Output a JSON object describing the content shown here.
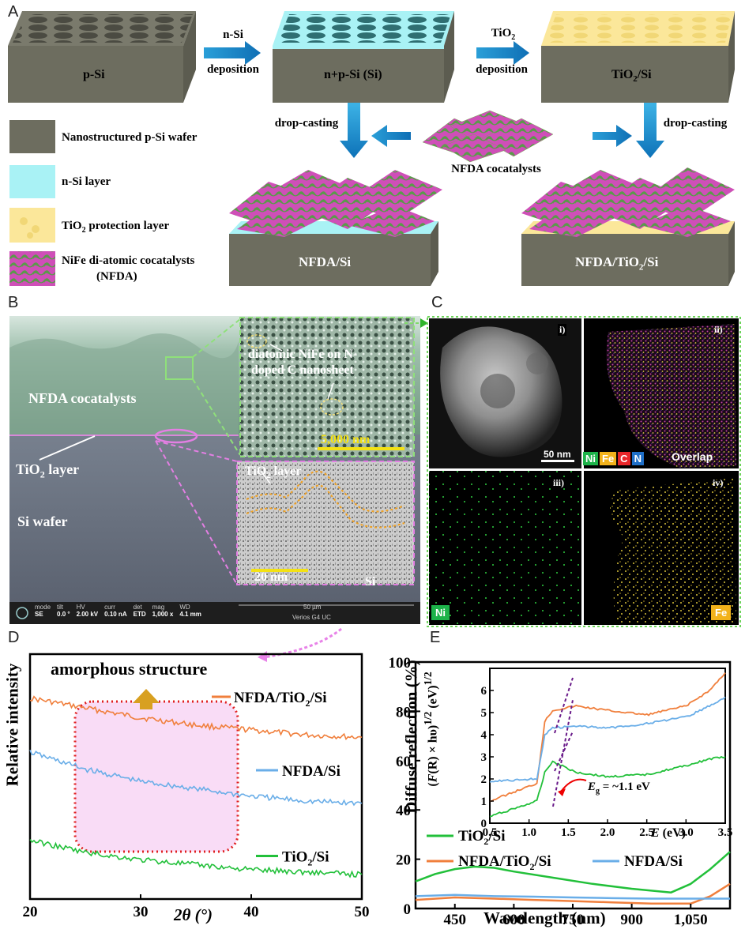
{
  "panelA": {
    "label": "A",
    "blocks": {
      "psi": "p-Si",
      "npsi": "n+p-Si (Si)",
      "tio2": "TiO",
      "tio2_sub": "2",
      "tio2_suffix": "/Si"
    },
    "arrows": {
      "nsi_top": "n-Si",
      "nsi_bottom": "deposition",
      "tio2_top": "TiO",
      "tio2_top_sub": "2",
      "tio2_bottom": "deposition",
      "dropcast_left": "drop-casting",
      "dropcast_right": "drop-casting"
    },
    "catalyst_label": "NFDA cocatalysts",
    "legend": [
      {
        "text": "Nanostructured p-Si wafer",
        "color": "#6d6d5f"
      },
      {
        "text": "n-Si layer",
        "color": "#a9f2f5"
      },
      {
        "text": "TiO",
        "sub": "2",
        "suffix": " protection layer",
        "color": "#fbe79a"
      },
      {
        "text": "NiFe di-atomic cocatalysts",
        "line2": "(NFDA)",
        "color": "#cf4fb8"
      }
    ],
    "products": {
      "left": "NFDA/Si",
      "right_pre": "NFDA/TiO",
      "right_sub": "2",
      "right_suf": "/Si"
    }
  },
  "panelB": {
    "label": "B",
    "labels": {
      "cocat": "NFDA cocatalysts",
      "tio2": "TiO",
      "tio2_sub": "2",
      "tio2_suf": " layer",
      "wafer": "Si wafer"
    },
    "inset_top": {
      "line1": "diatomic NiFe on N-",
      "line2": "doped C nanosheet",
      "scale": "5,000 nm"
    },
    "inset_bottom": {
      "tio2": "TiO",
      "tio2_sub": "2",
      "tio2_suf": " layer",
      "scale": "20 nm",
      "si": "Si"
    },
    "sem_bar": {
      "fields": [
        {
          "k": "mode",
          "v": "SE"
        },
        {
          "k": "tilt",
          "v": "0.0 °"
        },
        {
          "k": "HV",
          "v": "2.00 kV"
        },
        {
          "k": "curr",
          "v": "0.10 nA"
        },
        {
          "k": "det",
          "v": "ETD"
        },
        {
          "k": "mag",
          "v": "1,000 x"
        },
        {
          "k": "WD",
          "v": "4.1 mm"
        }
      ],
      "scale": "50 µm",
      "instrument": "Verios G4 UC"
    }
  },
  "panelC": {
    "label": "C",
    "tiles": [
      {
        "roman": "i)",
        "scale": "50 nm"
      },
      {
        "roman": "ii)",
        "overlap": "Overlap",
        "elements": [
          {
            "sym": "Ni",
            "color": "#1db34a"
          },
          {
            "sym": "Fe",
            "color": "#f2b21b"
          },
          {
            "sym": "C",
            "color": "#e8262a"
          },
          {
            "sym": "N",
            "color": "#1f6fc8"
          }
        ]
      },
      {
        "roman": "iii)",
        "el": "Ni",
        "color": "#1db34a"
      },
      {
        "roman": "iv)",
        "el": "Fe",
        "color": "#f2b21b"
      }
    ]
  },
  "panelD": {
    "label": "D",
    "annotation": "amorphous structure",
    "chart_data": {
      "type": "line",
      "xlabel": "2θ (°)",
      "ylabel": "Relative intensity",
      "xlim": [
        20,
        50
      ],
      "xticks": [
        20,
        30,
        40,
        50
      ],
      "series": [
        {
          "name": "NFDA/TiO2/Si",
          "color": "#f07f3c",
          "x": [
            20,
            25,
            30,
            35,
            40,
            45,
            50
          ],
          "y": [
            0.82,
            0.78,
            0.74,
            0.71,
            0.69,
            0.67,
            0.66
          ]
        },
        {
          "name": "NFDA/Si",
          "color": "#6aaee8",
          "x": [
            20,
            25,
            30,
            35,
            40,
            45,
            50
          ],
          "y": [
            0.6,
            0.53,
            0.48,
            0.45,
            0.42,
            0.4,
            0.39
          ]
        },
        {
          "name": "TiO2/Si",
          "color": "#22c03a",
          "x": [
            20,
            25,
            30,
            35,
            40,
            45,
            50
          ],
          "y": [
            0.24,
            0.19,
            0.16,
            0.14,
            0.12,
            0.11,
            0.1
          ]
        }
      ]
    }
  },
  "panelE": {
    "label": "E",
    "chart_data": {
      "type": "line",
      "xlabel": "Wavelength (nm)",
      "ylabel": "Diffuse reflection (%)",
      "xlim": [
        350,
        1150
      ],
      "ylim": [
        0,
        100
      ],
      "xticks": [
        450,
        600,
        750,
        900,
        1050
      ],
      "xticklabels": [
        "450",
        "600",
        "750",
        "900",
        "1,050"
      ],
      "yticks": [
        0,
        20,
        40,
        60,
        80,
        100
      ],
      "series": [
        {
          "name": "TiO2/Si",
          "color": "#22c03a",
          "x": [
            350,
            400,
            450,
            500,
            550,
            600,
            700,
            800,
            900,
            1000,
            1050,
            1100,
            1150
          ],
          "y": [
            11,
            14,
            16,
            17,
            16.5,
            15,
            12.5,
            10,
            8,
            6.5,
            10,
            16,
            23
          ]
        },
        {
          "name": "NFDA/TiO2/Si",
          "color": "#f07f3c",
          "x": [
            350,
            450,
            550,
            650,
            750,
            850,
            950,
            1050,
            1100,
            1150
          ],
          "y": [
            3.5,
            4.5,
            4,
            3.5,
            3,
            2.5,
            2,
            2,
            5,
            10
          ]
        },
        {
          "name": "NFDA/Si",
          "color": "#6aaee8",
          "x": [
            350,
            450,
            550,
            650,
            750,
            850,
            950,
            1050,
            1100,
            1150
          ],
          "y": [
            5,
            5.5,
            5,
            4.8,
            4.5,
            4.2,
            4,
            4,
            4,
            4
          ]
        }
      ],
      "inset": {
        "xlabel": "E (eV)",
        "ylabel": "(F(R) × hυ)^1/2 (eV)^1/2",
        "xlim": [
          0.5,
          3.5
        ],
        "ylim": [
          0,
          7
        ],
        "xticks": [
          0.5,
          1.0,
          1.5,
          2.0,
          2.5,
          3.0,
          3.5
        ],
        "xticklabels": [
          "0.5",
          "1.0",
          "1.5",
          "2.0",
          "2.5",
          "3.0",
          "3.5"
        ],
        "yticks": [
          0,
          1,
          2,
          3,
          4,
          5,
          6
        ],
        "annotation": "Eg = ~1.1 eV",
        "series": [
          {
            "color": "#f07f3c",
            "x": [
              0.5,
              1.1,
              1.2,
              1.3,
              1.6,
              2.0,
              2.5,
              3.0,
              3.3,
              3.5
            ],
            "y": [
              1.0,
              1.8,
              4.6,
              5.1,
              5.3,
              5.1,
              4.9,
              5.3,
              6.0,
              6.8
            ]
          },
          {
            "color": "#6aaee8",
            "x": [
              0.5,
              1.1,
              1.2,
              1.3,
              1.6,
              2.0,
              2.5,
              3.0,
              3.3,
              3.5
            ],
            "y": [
              1.9,
              2.0,
              4.0,
              4.3,
              4.4,
              4.3,
              4.5,
              4.8,
              5.3,
              5.7
            ]
          },
          {
            "color": "#22c03a",
            "x": [
              0.5,
              1.1,
              1.2,
              1.3,
              1.6,
              2.0,
              2.5,
              3.0,
              3.3,
              3.5
            ],
            "y": [
              0.3,
              1.0,
              2.3,
              2.8,
              2.3,
              2.1,
              2.2,
              2.6,
              2.9,
              3.0
            ]
          }
        ]
      }
    }
  }
}
